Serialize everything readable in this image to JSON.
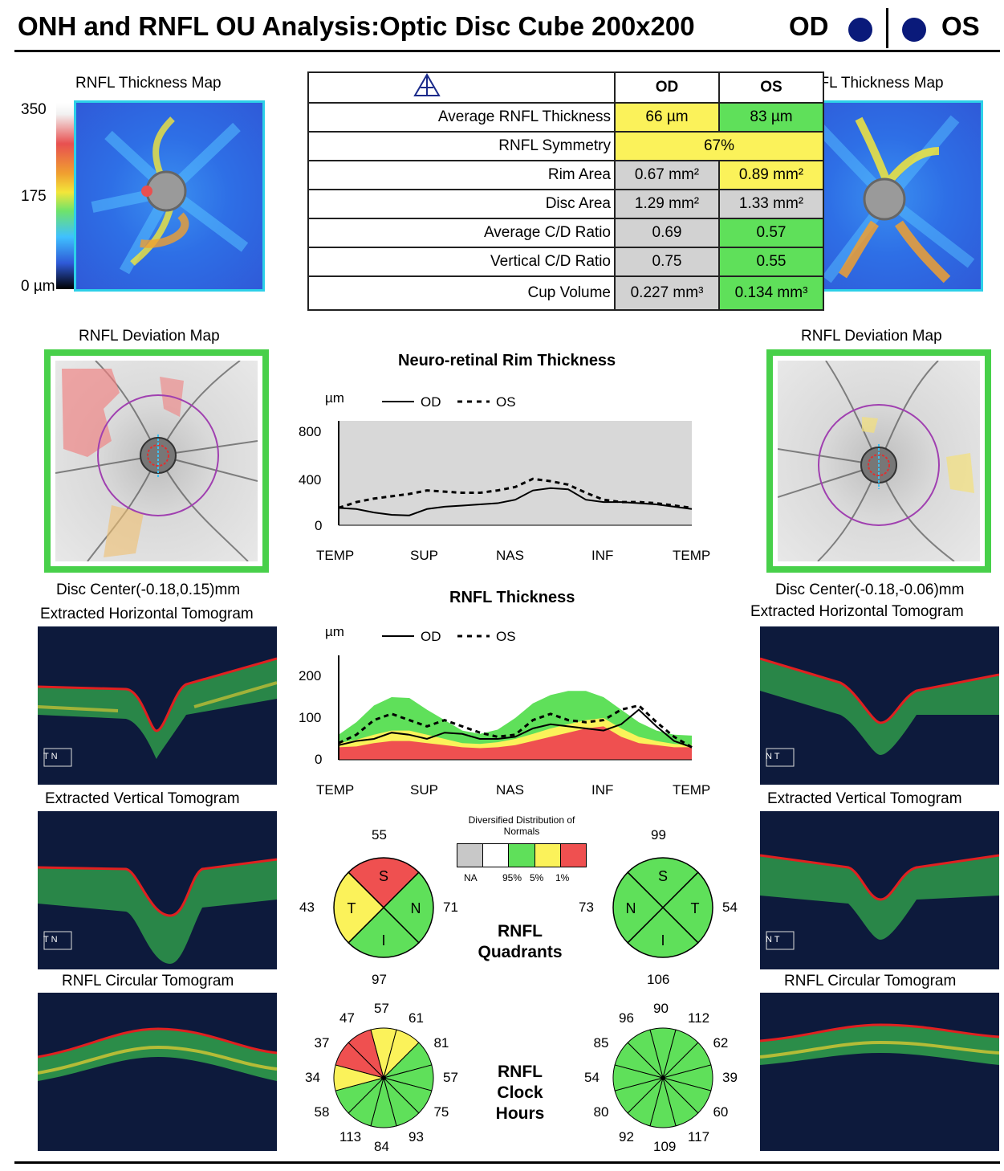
{
  "header": {
    "title": "ONH and RNFL OU Analysis:Optic Disc Cube 200x200",
    "od_label": "OD",
    "os_label": "OS"
  },
  "colors": {
    "normal": "#5fe05a",
    "borderline": "#fbf25a",
    "abnormal": "#ef5050",
    "na": "#d2d2d2",
    "od_dot": "#0a1a7a"
  },
  "thickness_map": {
    "title": "RNFL Thickness Map",
    "ticks": [
      "350",
      "175",
      "0 µm"
    ]
  },
  "table": {
    "icon": "warning-triangle-icon",
    "col_od": "OD",
    "col_os": "OS",
    "rows": [
      {
        "name": "Average RNFL Thickness",
        "od": "66 µm",
        "os": "83 µm"
      },
      {
        "name": "RNFL Symmetry",
        "both": "67%"
      },
      {
        "name": "Rim Area",
        "od": "0.67 mm²",
        "os": "0.89 mm²"
      },
      {
        "name": "Disc Area",
        "od": "1.29 mm²",
        "os": "1.33 mm²"
      },
      {
        "name": "Average C/D Ratio",
        "od": "0.69",
        "os": "0.57"
      },
      {
        "name": "Vertical C/D Ratio",
        "od": "0.75",
        "os": "0.55"
      },
      {
        "name": "Cup Volume",
        "od": "0.227 mm³",
        "os": "0.134 mm³"
      }
    ]
  },
  "deviation_map": {
    "title": "RNFL Deviation Map"
  },
  "od": {
    "disc_center": "Disc Center(-0.18,0.15)mm",
    "h_tomo": "Extracted Horizontal Tomogram",
    "v_tomo": "Extracted Vertical Tomogram",
    "c_tomo": "RNFL Circular Tomogram"
  },
  "os": {
    "disc_center": "Disc Center(-0.18,-0.06)mm",
    "h_tomo": "Extracted Horizontal Tomogram",
    "v_tomo": "Extracted Vertical Tomogram",
    "c_tomo": "RNFL Circular Tomogram"
  },
  "tomo_markers": {
    "od_h": "T N",
    "od_v": "T N",
    "os_h": "N T",
    "os_v": "N T"
  },
  "chart_data": [
    {
      "type": "line",
      "title": "Neuro-retinal Rim Thickness",
      "ylabel": "µm",
      "legend": [
        "OD",
        "OS"
      ],
      "x_ticks": [
        "TEMP",
        "SUP",
        "NAS",
        "INF",
        "TEMP"
      ],
      "y_ticks": [
        "800",
        "400",
        "0"
      ],
      "ylim": [
        0,
        900
      ],
      "x": [
        0,
        1,
        2,
        3,
        4,
        5,
        6,
        7,
        8,
        9,
        10,
        11,
        12,
        13,
        14,
        15,
        16,
        17,
        18,
        19,
        20
      ],
      "series": [
        {
          "name": "OD",
          "values": [
            150,
            140,
            110,
            90,
            85,
            140,
            160,
            170,
            180,
            190,
            220,
            300,
            320,
            310,
            220,
            200,
            200,
            190,
            180,
            160,
            140
          ]
        },
        {
          "name": "OS",
          "values": [
            150,
            200,
            230,
            250,
            270,
            300,
            290,
            280,
            280,
            300,
            330,
            400,
            380,
            350,
            280,
            220,
            200,
            200,
            190,
            170,
            150
          ]
        }
      ]
    },
    {
      "type": "line",
      "title": "RNFL Thickness",
      "ylabel": "µm",
      "legend": [
        "OD",
        "OS"
      ],
      "x_ticks": [
        "TEMP",
        "SUP",
        "NAS",
        "INF",
        "TEMP"
      ],
      "y_ticks": [
        "200",
        "100",
        "0"
      ],
      "ylim": [
        0,
        250
      ],
      "x": [
        0,
        1,
        2,
        3,
        4,
        5,
        6,
        7,
        8,
        9,
        10,
        11,
        12,
        13,
        14,
        15,
        16,
        17,
        18,
        19,
        20
      ],
      "normal_band": {
        "red_top": [
          30,
          32,
          40,
          45,
          45,
          40,
          35,
          30,
          28,
          30,
          35,
          45,
          55,
          65,
          75,
          80,
          55,
          40,
          35,
          30,
          30
        ],
        "yellow_top": [
          40,
          48,
          60,
          70,
          70,
          60,
          50,
          40,
          38,
          42,
          50,
          62,
          75,
          85,
          95,
          100,
          75,
          55,
          45,
          38,
          35
        ],
        "green_top": [
          60,
          90,
          130,
          150,
          148,
          120,
          95,
          70,
          62,
          72,
          100,
          135,
          155,
          165,
          165,
          150,
          120,
          90,
          70,
          60,
          58
        ]
      },
      "series": [
        {
          "name": "OD",
          "values": [
            35,
            45,
            50,
            65,
            60,
            50,
            65,
            62,
            50,
            50,
            55,
            75,
            85,
            80,
            75,
            70,
            85,
            120,
            80,
            45,
            30
          ]
        },
        {
          "name": "OS",
          "values": [
            40,
            60,
            95,
            110,
            95,
            80,
            95,
            80,
            65,
            55,
            60,
            95,
            110,
            95,
            90,
            95,
            120,
            130,
            90,
            55,
            30
          ]
        }
      ]
    },
    {
      "type": "pie",
      "title": "RNFL Quadrants",
      "od": {
        "S": "55",
        "N": "71",
        "I": "97",
        "T": "43",
        "S_class": "abnormal",
        "N_class": "normal",
        "I_class": "normal",
        "T_class": "borderline"
      },
      "os": {
        "S": "99",
        "T": "54",
        "I": "106",
        "N": "73",
        "S_class": "normal",
        "T_class": "normal",
        "I_class": "normal",
        "N_class": "normal"
      }
    },
    {
      "type": "pie",
      "title": "RNFL Clock Hours",
      "od_values": [
        "57",
        "61",
        "81",
        "57",
        "75",
        "93",
        "84",
        "113",
        "58",
        "34",
        "37",
        "47"
      ],
      "od_classes": [
        "borderline",
        "borderline",
        "normal",
        "normal",
        "normal",
        "normal",
        "normal",
        "normal",
        "normal",
        "borderline",
        "abnormal",
        "abnormal"
      ],
      "os_values": [
        "90",
        "112",
        "62",
        "39",
        "60",
        "117",
        "109",
        "92",
        "80",
        "54",
        "85",
        "96"
      ],
      "os_classes": [
        "normal",
        "normal",
        "normal",
        "normal",
        "normal",
        "normal",
        "normal",
        "normal",
        "normal",
        "normal",
        "normal",
        "normal"
      ]
    }
  ],
  "legend_box": {
    "title": "Diversified Distribution of Normals",
    "labels": [
      "NA",
      "95%",
      "5%",
      "1%"
    ]
  },
  "quadrant_label": "RNFL Quadrants",
  "clock_label": "RNFL Clock Hours",
  "quadrant_letters": [
    "S",
    "N",
    "I",
    "T"
  ]
}
